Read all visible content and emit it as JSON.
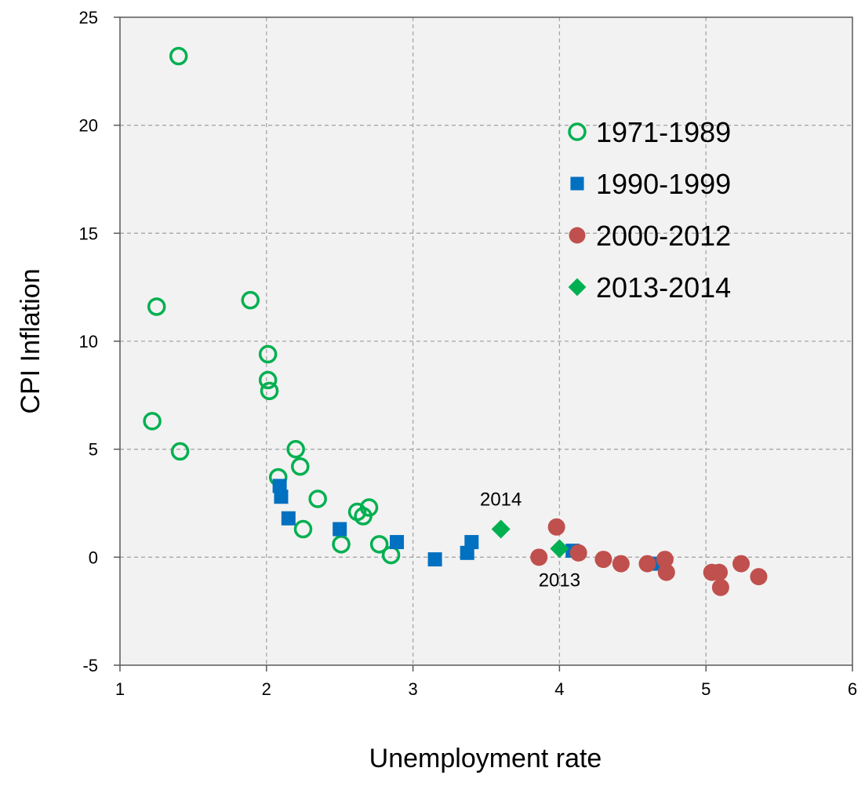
{
  "chart_data": {
    "type": "scatter",
    "title": "",
    "xlabel": "Unemployment rate",
    "ylabel": "CPI Inflation",
    "xlim": [
      1,
      6
    ],
    "ylim": [
      -5,
      25
    ],
    "xticks": [
      "1",
      "2",
      "3",
      "4",
      "5",
      "6"
    ],
    "yticks": [
      "-5",
      "0",
      "5",
      "10",
      "15",
      "20",
      "25"
    ],
    "grid": true,
    "legend_position": "top-right",
    "colors": {
      "s1971": "#00b050",
      "s1990": "#0070c0",
      "s2000": "#c0504d",
      "s2013": "#00b050",
      "plot_bg": "#f2f2f2",
      "grid": "#a6a6a6"
    },
    "series": [
      {
        "name": "1971-1989",
        "marker": "open-circle",
        "points": [
          [
            1.4,
            23.2
          ],
          [
            1.25,
            11.6
          ],
          [
            1.22,
            6.3
          ],
          [
            1.41,
            4.9
          ],
          [
            1.89,
            11.9
          ],
          [
            2.01,
            9.4
          ],
          [
            2.01,
            8.2
          ],
          [
            2.02,
            7.7
          ],
          [
            2.2,
            5.0
          ],
          [
            2.23,
            4.2
          ],
          [
            2.08,
            3.7
          ],
          [
            2.35,
            2.7
          ],
          [
            2.25,
            1.3
          ],
          [
            2.51,
            0.6
          ],
          [
            2.62,
            2.1
          ],
          [
            2.66,
            1.9
          ],
          [
            2.7,
            2.3
          ],
          [
            2.77,
            0.6
          ],
          [
            2.85,
            0.1
          ]
        ]
      },
      {
        "name": "1990-1999",
        "marker": "square",
        "points": [
          [
            2.09,
            3.3
          ],
          [
            2.1,
            2.8
          ],
          [
            2.15,
            1.8
          ],
          [
            2.5,
            1.3
          ],
          [
            2.89,
            0.7
          ],
          [
            3.15,
            -0.1
          ],
          [
            3.37,
            0.2
          ],
          [
            3.4,
            0.7
          ],
          [
            4.09,
            0.3
          ],
          [
            4.65,
            -0.3
          ]
        ]
      },
      {
        "name": "2000-2012",
        "marker": "filled-circle",
        "points": [
          [
            3.86,
            0.0
          ],
          [
            3.98,
            1.4
          ],
          [
            4.13,
            0.2
          ],
          [
            4.3,
            -0.1
          ],
          [
            4.42,
            -0.3
          ],
          [
            4.6,
            -0.3
          ],
          [
            4.72,
            -0.1
          ],
          [
            4.73,
            -0.7
          ],
          [
            5.04,
            -0.7
          ],
          [
            5.09,
            -0.7
          ],
          [
            5.1,
            -1.4
          ],
          [
            5.24,
            -0.3
          ],
          [
            5.36,
            -0.9
          ]
        ]
      },
      {
        "name": "2013-2014",
        "marker": "diamond",
        "points": [
          [
            4.0,
            0.4
          ],
          [
            3.6,
            1.3
          ]
        ]
      }
    ],
    "annotations": [
      {
        "text": "2014",
        "x": 3.6,
        "y": 1.3,
        "anchor": "above"
      },
      {
        "text": "2013",
        "x": 4.0,
        "y": 0.4,
        "anchor": "below"
      }
    ]
  }
}
